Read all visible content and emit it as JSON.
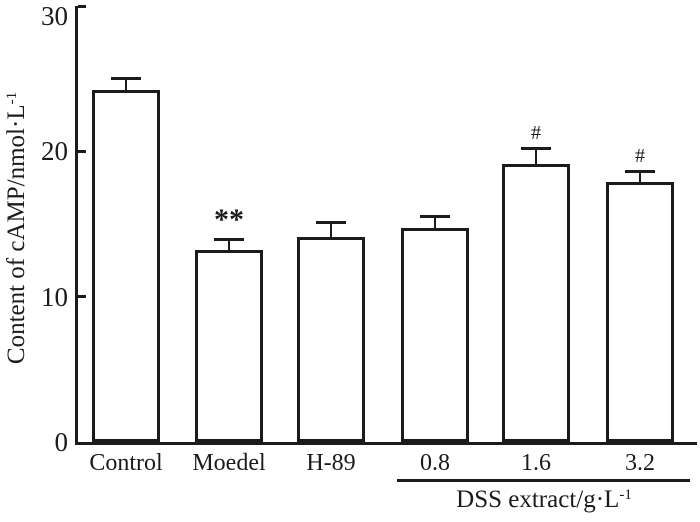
{
  "figure": {
    "background": "#ffffff",
    "ink_color": "#1b1b1b"
  },
  "chart_data": {
    "type": "bar",
    "title": "",
    "xlabel": "",
    "ylabel": "Content of cAMP/nmol·L^-1",
    "ylabel_base": "Content of cAMP/nmol·L",
    "ylabel_sup": "-1",
    "ylim": [
      0,
      30
    ],
    "yticks": [
      0,
      10,
      20,
      30
    ],
    "grid": false,
    "legend": "none",
    "bar_fill": "#ffffff",
    "bar_edge": "#1b1b1b",
    "categories": [
      "Control",
      "Moedel",
      "H-89",
      "0.8",
      "1.6",
      "3.2"
    ],
    "values": [
      24.2,
      13.2,
      14.1,
      14.7,
      19.1,
      17.9
    ],
    "errors": [
      0.7,
      0.6,
      0.9,
      0.7,
      1.0,
      0.6
    ],
    "error_direction": "upper",
    "annotations": [
      "",
      "**",
      "",
      "",
      "#",
      "#"
    ],
    "group": {
      "members": [
        "0.8",
        "1.6",
        "3.2"
      ],
      "label": "DSS extract/g·L^-1",
      "label_base": "DSS extract/g·L",
      "label_sup": "-1"
    }
  }
}
